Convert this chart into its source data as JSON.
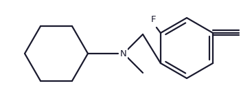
{
  "bg_color": "#ffffff",
  "line_color": "#1a1a2e",
  "line_width": 1.6,
  "label_color": "#1a1a2e",
  "font_size": 8.5,
  "figsize": [
    3.51,
    1.5
  ],
  "dpi": 100
}
